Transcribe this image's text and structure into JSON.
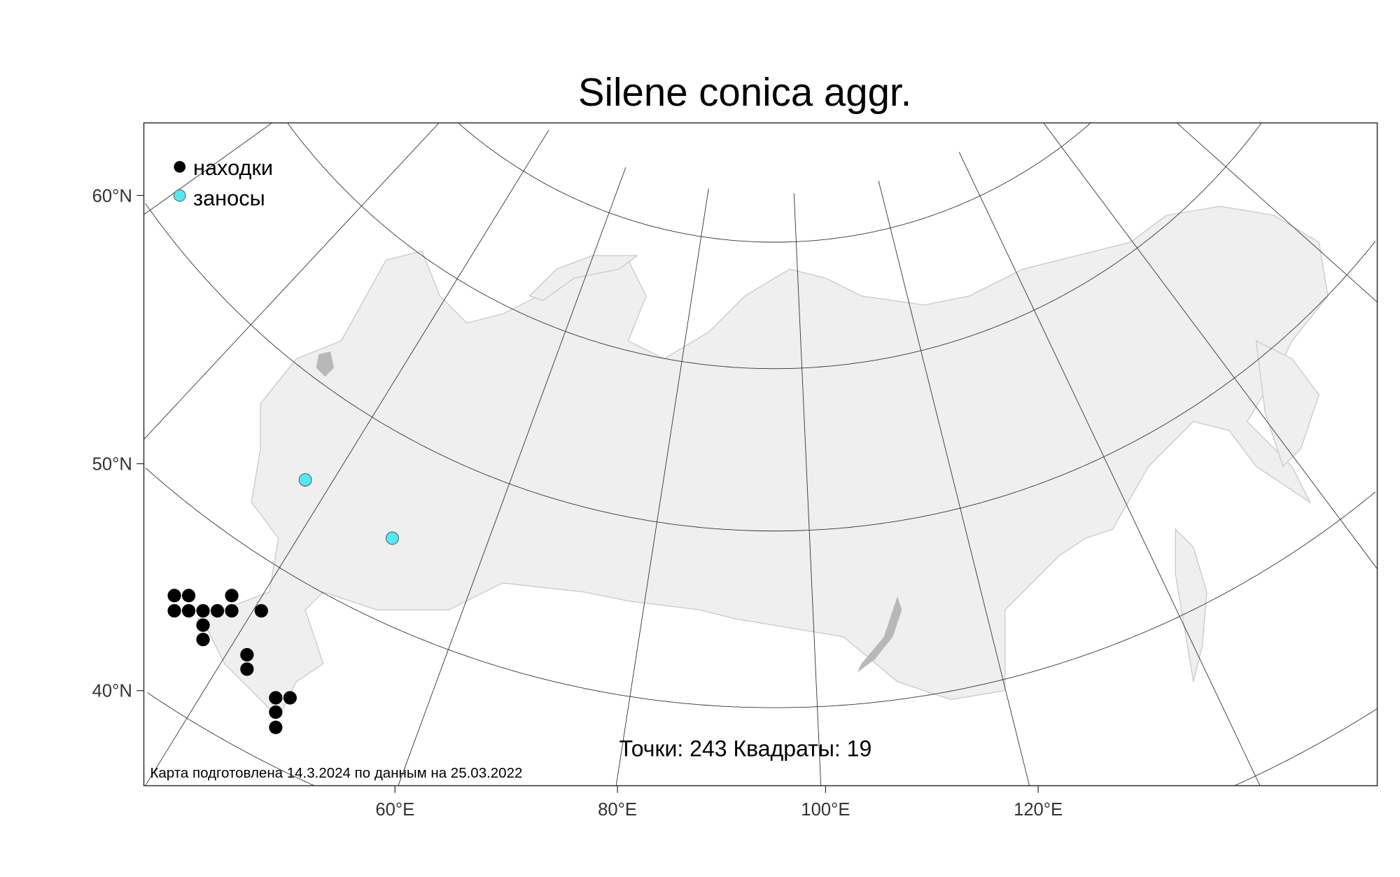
{
  "title": "Silene conica aggr.",
  "legend": [
    {
      "label": "находки",
      "color": "#000000"
    },
    {
      "label": "заносы",
      "color": "#55e8f0"
    }
  ],
  "stats": "Точки: 243 Квадраты: 19",
  "footnote": "Карта подготовлена 14.3.2024 по данным на 25.03.2022",
  "y_axis_labels": [
    "60°N",
    "50°N",
    "40°N"
  ],
  "x_axis_labels": [
    "60°E",
    "80°E",
    "100°E",
    "120°E"
  ],
  "colors": {
    "land": "#efefef",
    "border": "#c4c4c4",
    "water": "#b8b8b8",
    "frame": "#333333"
  }
}
